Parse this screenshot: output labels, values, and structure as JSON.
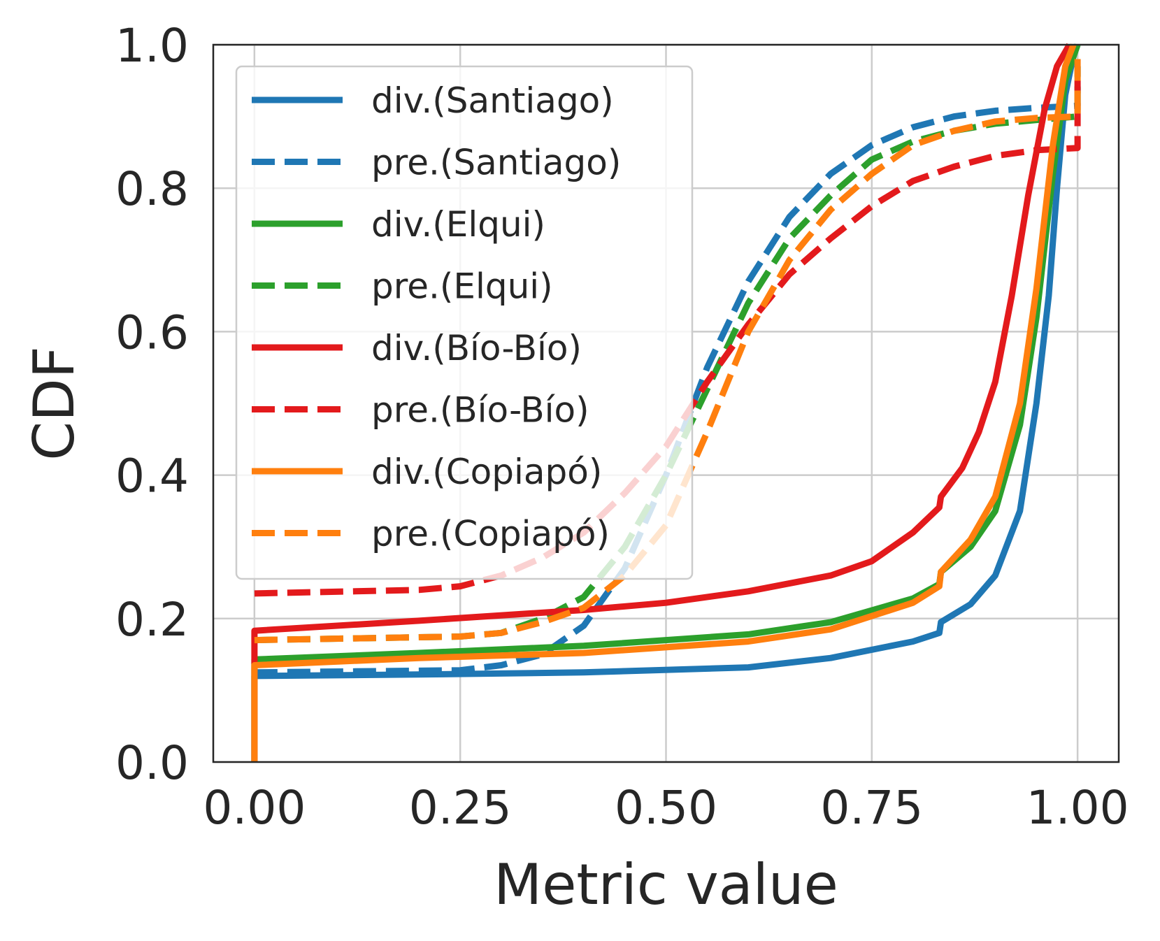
{
  "chart_data": {
    "type": "line",
    "xlabel": "Metric value",
    "ylabel": "CDF",
    "xlim": [
      -0.05,
      1.05
    ],
    "ylim": [
      0.0,
      1.0
    ],
    "xticks": [
      0.0,
      0.25,
      0.5,
      0.75,
      1.0
    ],
    "xtick_labels": [
      "0.00",
      "0.25",
      "0.50",
      "0.75",
      "1.00"
    ],
    "yticks": [
      0.0,
      0.2,
      0.4,
      0.6,
      0.8,
      1.0
    ],
    "ytick_labels": [
      "0.0",
      "0.2",
      "0.4",
      "0.6",
      "0.8",
      "1.0"
    ],
    "grid": true,
    "legend_position": "upper-left",
    "series": [
      {
        "name": "div.(Santiago)",
        "color": "#1f77b4",
        "dashed": false,
        "points": [
          [
            0,
            0
          ],
          [
            0,
            0.12
          ],
          [
            0.2,
            0.122
          ],
          [
            0.4,
            0.125
          ],
          [
            0.6,
            0.132
          ],
          [
            0.7,
            0.145
          ],
          [
            0.8,
            0.168
          ],
          [
            0.832,
            0.18
          ],
          [
            0.834,
            0.195
          ],
          [
            0.87,
            0.22
          ],
          [
            0.9,
            0.26
          ],
          [
            0.93,
            0.35
          ],
          [
            0.95,
            0.5
          ],
          [
            0.965,
            0.65
          ],
          [
            0.975,
            0.8
          ],
          [
            0.985,
            0.93
          ],
          [
            0.995,
            0.985
          ],
          [
            1.0,
            1.0
          ]
        ]
      },
      {
        "name": "pre.(Santiago)",
        "color": "#1f77b4",
        "dashed": true,
        "points": [
          [
            0,
            0.125
          ],
          [
            0.25,
            0.128
          ],
          [
            0.3,
            0.135
          ],
          [
            0.35,
            0.15
          ],
          [
            0.4,
            0.19
          ],
          [
            0.45,
            0.27
          ],
          [
            0.5,
            0.4
          ],
          [
            0.55,
            0.55
          ],
          [
            0.6,
            0.67
          ],
          [
            0.65,
            0.76
          ],
          [
            0.7,
            0.82
          ],
          [
            0.75,
            0.86
          ],
          [
            0.8,
            0.885
          ],
          [
            0.85,
            0.9
          ],
          [
            0.9,
            0.908
          ],
          [
            0.95,
            0.912
          ],
          [
            1.0,
            0.915
          ],
          [
            1.0,
            0.97
          ]
        ]
      },
      {
        "name": "div.(Elqui)",
        "color": "#2ca02c",
        "dashed": false,
        "points": [
          [
            0,
            0
          ],
          [
            0,
            0.143
          ],
          [
            0.2,
            0.152
          ],
          [
            0.4,
            0.162
          ],
          [
            0.6,
            0.178
          ],
          [
            0.7,
            0.195
          ],
          [
            0.8,
            0.228
          ],
          [
            0.832,
            0.248
          ],
          [
            0.834,
            0.265
          ],
          [
            0.87,
            0.3
          ],
          [
            0.9,
            0.35
          ],
          [
            0.93,
            0.47
          ],
          [
            0.95,
            0.62
          ],
          [
            0.97,
            0.82
          ],
          [
            0.985,
            0.95
          ],
          [
            1.0,
            1.0
          ]
        ]
      },
      {
        "name": "pre.(Elqui)",
        "color": "#2ca02c",
        "dashed": true,
        "points": [
          [
            0,
            0.17
          ],
          [
            0.25,
            0.175
          ],
          [
            0.3,
            0.18
          ],
          [
            0.35,
            0.2
          ],
          [
            0.4,
            0.23
          ],
          [
            0.45,
            0.3
          ],
          [
            0.5,
            0.4
          ],
          [
            0.55,
            0.52
          ],
          [
            0.6,
            0.64
          ],
          [
            0.65,
            0.73
          ],
          [
            0.7,
            0.79
          ],
          [
            0.75,
            0.84
          ],
          [
            0.8,
            0.865
          ],
          [
            0.85,
            0.88
          ],
          [
            0.9,
            0.89
          ],
          [
            0.95,
            0.895
          ],
          [
            1.0,
            0.9
          ],
          [
            1.0,
            0.97
          ]
        ]
      },
      {
        "name": "div.(Bío-Bío)",
        "color": "#e31a1c",
        "dashed": false,
        "points": [
          [
            0,
            0
          ],
          [
            0,
            0.183
          ],
          [
            0.2,
            0.197
          ],
          [
            0.4,
            0.212
          ],
          [
            0.5,
            0.222
          ],
          [
            0.6,
            0.238
          ],
          [
            0.7,
            0.26
          ],
          [
            0.75,
            0.28
          ],
          [
            0.8,
            0.32
          ],
          [
            0.832,
            0.355
          ],
          [
            0.834,
            0.37
          ],
          [
            0.86,
            0.41
          ],
          [
            0.88,
            0.46
          ],
          [
            0.9,
            0.53
          ],
          [
            0.92,
            0.65
          ],
          [
            0.94,
            0.79
          ],
          [
            0.96,
            0.91
          ],
          [
            0.975,
            0.97
          ],
          [
            0.99,
            1.0
          ]
        ]
      },
      {
        "name": "pre.(Bío-Bío)",
        "color": "#e31a1c",
        "dashed": true,
        "points": [
          [
            0,
            0.235
          ],
          [
            0.2,
            0.24
          ],
          [
            0.25,
            0.245
          ],
          [
            0.3,
            0.26
          ],
          [
            0.35,
            0.285
          ],
          [
            0.4,
            0.32
          ],
          [
            0.45,
            0.375
          ],
          [
            0.5,
            0.44
          ],
          [
            0.55,
            0.53
          ],
          [
            0.6,
            0.61
          ],
          [
            0.65,
            0.68
          ],
          [
            0.7,
            0.73
          ],
          [
            0.75,
            0.775
          ],
          [
            0.8,
            0.81
          ],
          [
            0.85,
            0.83
          ],
          [
            0.9,
            0.845
          ],
          [
            0.95,
            0.853
          ],
          [
            1.0,
            0.856
          ],
          [
            1.0,
            0.95
          ]
        ]
      },
      {
        "name": "div.(Copiapó)",
        "color": "#ff7f0e",
        "dashed": false,
        "points": [
          [
            0,
            0
          ],
          [
            0,
            0.135
          ],
          [
            0.2,
            0.145
          ],
          [
            0.4,
            0.152
          ],
          [
            0.6,
            0.168
          ],
          [
            0.7,
            0.185
          ],
          [
            0.8,
            0.222
          ],
          [
            0.832,
            0.245
          ],
          [
            0.834,
            0.265
          ],
          [
            0.87,
            0.31
          ],
          [
            0.9,
            0.37
          ],
          [
            0.93,
            0.5
          ],
          [
            0.95,
            0.66
          ],
          [
            0.97,
            0.86
          ],
          [
            0.985,
            0.97
          ],
          [
            0.995,
            1.0
          ]
        ]
      },
      {
        "name": "pre.(Copiapó)",
        "color": "#ff7f0e",
        "dashed": true,
        "points": [
          [
            0,
            0.17
          ],
          [
            0.25,
            0.175
          ],
          [
            0.3,
            0.18
          ],
          [
            0.35,
            0.195
          ],
          [
            0.4,
            0.215
          ],
          [
            0.45,
            0.26
          ],
          [
            0.5,
            0.33
          ],
          [
            0.55,
            0.46
          ],
          [
            0.6,
            0.6
          ],
          [
            0.65,
            0.7
          ],
          [
            0.7,
            0.77
          ],
          [
            0.75,
            0.82
          ],
          [
            0.8,
            0.86
          ],
          [
            0.85,
            0.88
          ],
          [
            0.9,
            0.893
          ],
          [
            0.95,
            0.898
          ],
          [
            1.0,
            0.9
          ],
          [
            1.0,
            0.98
          ]
        ]
      }
    ]
  }
}
